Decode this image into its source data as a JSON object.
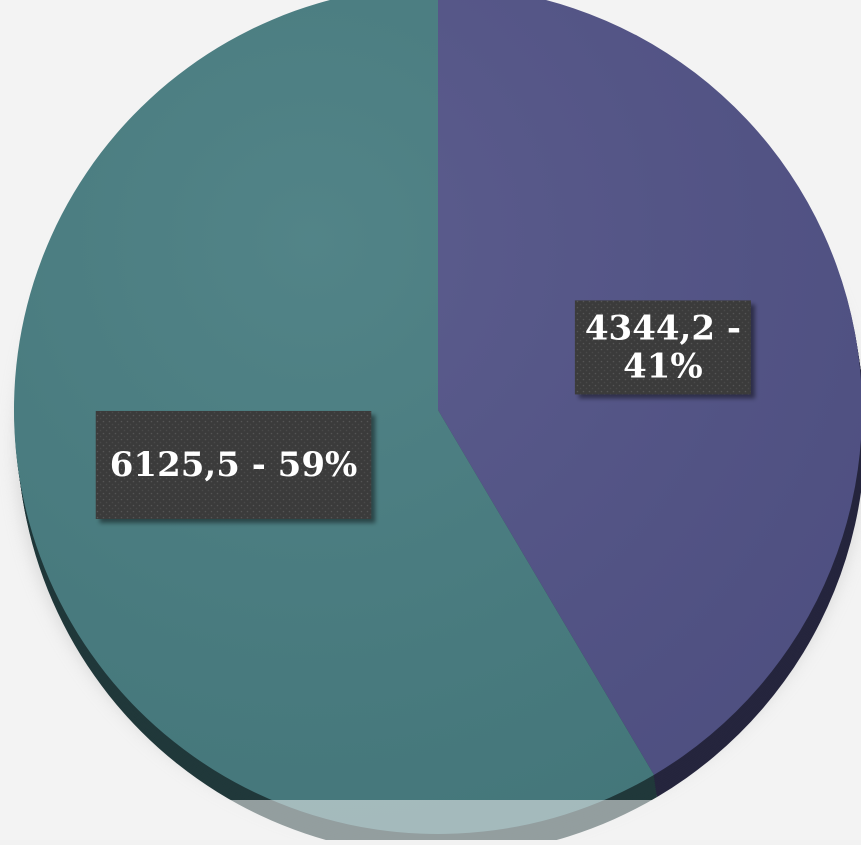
{
  "chart_data": {
    "type": "pie",
    "title": "",
    "slices": [
      {
        "value": 4344.2,
        "percent": 41,
        "label": "4344,2 - 41%",
        "label_lines": [
          "4344,2 -",
          "41%"
        ],
        "color": "#525387"
      },
      {
        "value": 6125.5,
        "percent": 59,
        "label": "6125,5 - 59%",
        "label_lines": [
          "6125,5 - 59%"
        ],
        "color": "#477c80"
      }
    ],
    "legend": "none",
    "label_box_color": "#3a3a3a"
  }
}
